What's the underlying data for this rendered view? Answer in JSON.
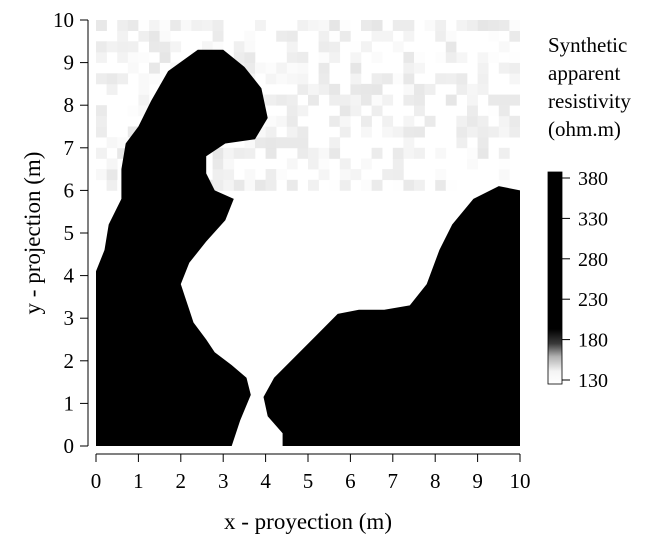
{
  "chart_data": {
    "type": "heatmap",
    "title": "",
    "xlabel": "x - proyection (m)",
    "ylabel": "y - projection (m)",
    "xlim": [
      0,
      10
    ],
    "ylim": [
      0,
      10
    ],
    "x_ticks": [
      "0",
      "1",
      "2",
      "3",
      "4",
      "5",
      "6",
      "7",
      "8",
      "9",
      "10"
    ],
    "y_ticks": [
      "0",
      "1",
      "2",
      "3",
      "4",
      "5",
      "6",
      "7",
      "8",
      "9",
      "10"
    ],
    "grid": false,
    "colorbar": {
      "title_lines": [
        "Synthetic",
        "apparent",
        "resistivity",
        "(ohm.m)"
      ],
      "ticks": [
        "130",
        "180",
        "230",
        "280",
        "330",
        "380"
      ],
      "range": [
        130,
        380
      ],
      "colors": {
        "high": "#000000",
        "low": "#ffffff"
      }
    },
    "data_description": {
      "high_value_ohm_m": 380,
      "low_value_ohm_m": 130,
      "high_regions": [
        {
          "name": "left-lobe",
          "outline_xy": [
            [
              0,
              0
            ],
            [
              3.2,
              0
            ],
            [
              3.4,
              0.6
            ],
            [
              3.65,
              1.2
            ],
            [
              3.55,
              1.6
            ],
            [
              3.2,
              1.9
            ],
            [
              2.8,
              2.2
            ],
            [
              2.6,
              2.5
            ],
            [
              2.3,
              2.9
            ],
            [
              2.2,
              3.2
            ],
            [
              2.1,
              3.5
            ],
            [
              2.0,
              3.8
            ],
            [
              2.2,
              4.3
            ],
            [
              2.6,
              4.8
            ],
            [
              3.05,
              5.3
            ],
            [
              3.25,
              5.8
            ],
            [
              2.8,
              6.0
            ],
            [
              2.6,
              6.4
            ],
            [
              2.6,
              6.8
            ],
            [
              3.05,
              7.1
            ],
            [
              3.75,
              7.2
            ],
            [
              4.05,
              7.7
            ],
            [
              3.9,
              8.4
            ],
            [
              3.5,
              8.9
            ],
            [
              3.0,
              9.3
            ],
            [
              2.4,
              9.3
            ],
            [
              1.7,
              8.8
            ],
            [
              1.3,
              8.1
            ],
            [
              1.0,
              7.5
            ],
            [
              0.7,
              7.1
            ],
            [
              0.6,
              6.5
            ],
            [
              0.6,
              5.8
            ],
            [
              0.3,
              5.2
            ],
            [
              0.2,
              4.6
            ],
            [
              0,
              4.1
            ]
          ]
        },
        {
          "name": "right-lobe",
          "outline_xy": [
            [
              4.4,
              0
            ],
            [
              10,
              0
            ],
            [
              10,
              6.0
            ],
            [
              9.5,
              6.1
            ],
            [
              8.9,
              5.8
            ],
            [
              8.4,
              5.2
            ],
            [
              8.1,
              4.6
            ],
            [
              7.8,
              3.8
            ],
            [
              7.4,
              3.3
            ],
            [
              6.8,
              3.2
            ],
            [
              6.2,
              3.2
            ],
            [
              5.7,
              3.1
            ],
            [
              5.2,
              2.6
            ],
            [
              4.7,
              2.1
            ],
            [
              4.2,
              1.6
            ],
            [
              3.95,
              1.15
            ],
            [
              4.05,
              0.7
            ],
            [
              4.4,
              0.3
            ]
          ]
        }
      ],
      "noise_band_y": [
        6.0,
        10.0
      ],
      "noise_range_ohm_m": [
        130,
        175
      ]
    }
  }
}
